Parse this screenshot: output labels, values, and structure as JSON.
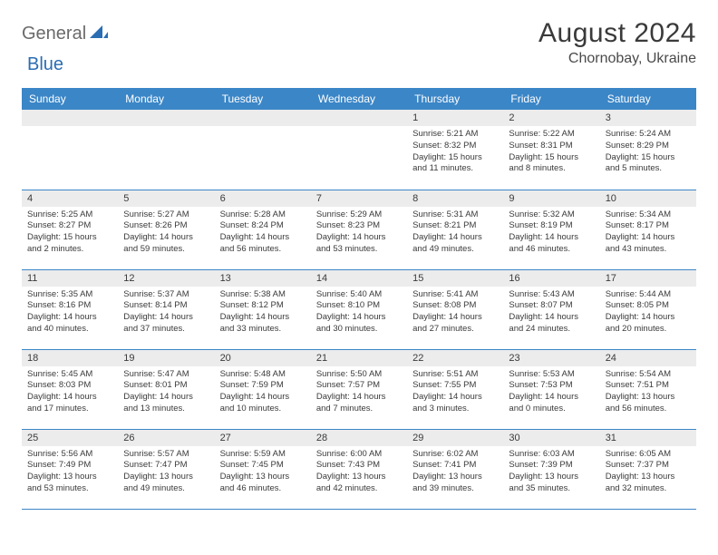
{
  "logo": {
    "part1": "General",
    "part2": "Blue"
  },
  "title": "August 2024",
  "location": "Chornobay, Ukraine",
  "colors": {
    "header_bg": "#3b86c7",
    "header_text": "#ffffff",
    "daynum_bg": "#ececec",
    "border": "#3b86c7",
    "text": "#3a3a3a",
    "logo_gray": "#6a6a6a",
    "logo_blue": "#2a6db3"
  },
  "weekdays": [
    "Sunday",
    "Monday",
    "Tuesday",
    "Wednesday",
    "Thursday",
    "Friday",
    "Saturday"
  ],
  "weeks": [
    [
      null,
      null,
      null,
      null,
      {
        "n": "1",
        "sr": "5:21 AM",
        "ss": "8:32 PM",
        "dl": "15 hours and 11 minutes."
      },
      {
        "n": "2",
        "sr": "5:22 AM",
        "ss": "8:31 PM",
        "dl": "15 hours and 8 minutes."
      },
      {
        "n": "3",
        "sr": "5:24 AM",
        "ss": "8:29 PM",
        "dl": "15 hours and 5 minutes."
      }
    ],
    [
      {
        "n": "4",
        "sr": "5:25 AM",
        "ss": "8:27 PM",
        "dl": "15 hours and 2 minutes."
      },
      {
        "n": "5",
        "sr": "5:27 AM",
        "ss": "8:26 PM",
        "dl": "14 hours and 59 minutes."
      },
      {
        "n": "6",
        "sr": "5:28 AM",
        "ss": "8:24 PM",
        "dl": "14 hours and 56 minutes."
      },
      {
        "n": "7",
        "sr": "5:29 AM",
        "ss": "8:23 PM",
        "dl": "14 hours and 53 minutes."
      },
      {
        "n": "8",
        "sr": "5:31 AM",
        "ss": "8:21 PM",
        "dl": "14 hours and 49 minutes."
      },
      {
        "n": "9",
        "sr": "5:32 AM",
        "ss": "8:19 PM",
        "dl": "14 hours and 46 minutes."
      },
      {
        "n": "10",
        "sr": "5:34 AM",
        "ss": "8:17 PM",
        "dl": "14 hours and 43 minutes."
      }
    ],
    [
      {
        "n": "11",
        "sr": "5:35 AM",
        "ss": "8:16 PM",
        "dl": "14 hours and 40 minutes."
      },
      {
        "n": "12",
        "sr": "5:37 AM",
        "ss": "8:14 PM",
        "dl": "14 hours and 37 minutes."
      },
      {
        "n": "13",
        "sr": "5:38 AM",
        "ss": "8:12 PM",
        "dl": "14 hours and 33 minutes."
      },
      {
        "n": "14",
        "sr": "5:40 AM",
        "ss": "8:10 PM",
        "dl": "14 hours and 30 minutes."
      },
      {
        "n": "15",
        "sr": "5:41 AM",
        "ss": "8:08 PM",
        "dl": "14 hours and 27 minutes."
      },
      {
        "n": "16",
        "sr": "5:43 AM",
        "ss": "8:07 PM",
        "dl": "14 hours and 24 minutes."
      },
      {
        "n": "17",
        "sr": "5:44 AM",
        "ss": "8:05 PM",
        "dl": "14 hours and 20 minutes."
      }
    ],
    [
      {
        "n": "18",
        "sr": "5:45 AM",
        "ss": "8:03 PM",
        "dl": "14 hours and 17 minutes."
      },
      {
        "n": "19",
        "sr": "5:47 AM",
        "ss": "8:01 PM",
        "dl": "14 hours and 13 minutes."
      },
      {
        "n": "20",
        "sr": "5:48 AM",
        "ss": "7:59 PM",
        "dl": "14 hours and 10 minutes."
      },
      {
        "n": "21",
        "sr": "5:50 AM",
        "ss": "7:57 PM",
        "dl": "14 hours and 7 minutes."
      },
      {
        "n": "22",
        "sr": "5:51 AM",
        "ss": "7:55 PM",
        "dl": "14 hours and 3 minutes."
      },
      {
        "n": "23",
        "sr": "5:53 AM",
        "ss": "7:53 PM",
        "dl": "14 hours and 0 minutes."
      },
      {
        "n": "24",
        "sr": "5:54 AM",
        "ss": "7:51 PM",
        "dl": "13 hours and 56 minutes."
      }
    ],
    [
      {
        "n": "25",
        "sr": "5:56 AM",
        "ss": "7:49 PM",
        "dl": "13 hours and 53 minutes."
      },
      {
        "n": "26",
        "sr": "5:57 AM",
        "ss": "7:47 PM",
        "dl": "13 hours and 49 minutes."
      },
      {
        "n": "27",
        "sr": "5:59 AM",
        "ss": "7:45 PM",
        "dl": "13 hours and 46 minutes."
      },
      {
        "n": "28",
        "sr": "6:00 AM",
        "ss": "7:43 PM",
        "dl": "13 hours and 42 minutes."
      },
      {
        "n": "29",
        "sr": "6:02 AM",
        "ss": "7:41 PM",
        "dl": "13 hours and 39 minutes."
      },
      {
        "n": "30",
        "sr": "6:03 AM",
        "ss": "7:39 PM",
        "dl": "13 hours and 35 minutes."
      },
      {
        "n": "31",
        "sr": "6:05 AM",
        "ss": "7:37 PM",
        "dl": "13 hours and 32 minutes."
      }
    ]
  ],
  "labels": {
    "sunrise": "Sunrise:",
    "sunset": "Sunset:",
    "daylight": "Daylight:"
  }
}
